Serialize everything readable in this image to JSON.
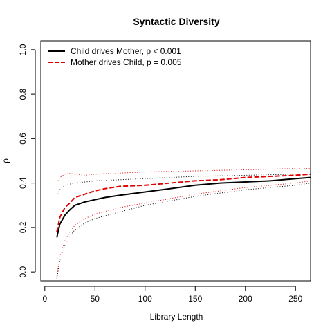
{
  "chart_data": {
    "type": "line",
    "title": "Syntactic Diversity",
    "xlabel": "Library Length",
    "ylabel": "ρ",
    "xlim": [
      -4,
      265
    ],
    "ylim": [
      -0.04,
      1.04
    ],
    "x_ticks": [
      0,
      50,
      100,
      150,
      200,
      250
    ],
    "y_ticks": [
      0.0,
      0.2,
      0.4,
      0.6,
      0.8,
      1.0
    ],
    "x_tick_labels": [
      "0",
      "50",
      "100",
      "150",
      "200",
      "250"
    ],
    "y_tick_labels": [
      "0.0",
      "0.2",
      "0.4",
      "0.6",
      "0.8",
      "1.0"
    ],
    "grid": false,
    "legend_position": "top-left",
    "series": [
      {
        "name": "Child drives Mother, p < 0.001",
        "color": "#000000",
        "style": "solid",
        "x": [
          12,
          15,
          20,
          25,
          30,
          40,
          50,
          60,
          75,
          100,
          125,
          150,
          175,
          200,
          225,
          250,
          265
        ],
        "y": [
          0.155,
          0.215,
          0.255,
          0.28,
          0.3,
          0.315,
          0.325,
          0.335,
          0.345,
          0.36,
          0.375,
          0.39,
          0.4,
          0.405,
          0.41,
          0.42,
          0.425
        ],
        "band_upper": {
          "x": [
            12,
            15,
            20,
            25,
            30,
            40,
            50,
            75,
            100,
            150,
            200,
            250,
            265
          ],
          "y": [
            0.34,
            0.37,
            0.39,
            0.395,
            0.4,
            0.405,
            0.41,
            0.415,
            0.42,
            0.43,
            0.435,
            0.44,
            0.44
          ]
        },
        "band_lower": {
          "x": [
            12,
            15,
            20,
            25,
            30,
            40,
            50,
            75,
            100,
            150,
            200,
            250,
            265
          ],
          "y": [
            -0.03,
            0.05,
            0.12,
            0.16,
            0.19,
            0.22,
            0.24,
            0.27,
            0.3,
            0.34,
            0.37,
            0.39,
            0.4
          ]
        }
      },
      {
        "name": "Mother drives Child, p = 0.005",
        "color": "#e00000",
        "style": "dashed",
        "x": [
          12,
          15,
          20,
          25,
          30,
          40,
          50,
          60,
          75,
          100,
          125,
          150,
          175,
          200,
          225,
          250,
          265
        ],
        "y": [
          0.18,
          0.245,
          0.29,
          0.31,
          0.335,
          0.35,
          0.365,
          0.375,
          0.385,
          0.39,
          0.4,
          0.41,
          0.415,
          0.425,
          0.43,
          0.435,
          0.44
        ],
        "band_upper": {
          "x": [
            12,
            15,
            20,
            25,
            30,
            40,
            50,
            75,
            100,
            150,
            200,
            250,
            265
          ],
          "y": [
            0.4,
            0.425,
            0.44,
            0.443,
            0.44,
            0.435,
            0.44,
            0.445,
            0.45,
            0.455,
            0.46,
            0.465,
            0.465
          ]
        },
        "band_lower": {
          "x": [
            12,
            15,
            20,
            25,
            30,
            40,
            50,
            75,
            100,
            150,
            200,
            250,
            265
          ],
          "y": [
            -0.02,
            0.07,
            0.14,
            0.18,
            0.21,
            0.24,
            0.26,
            0.29,
            0.31,
            0.35,
            0.38,
            0.4,
            0.41
          ]
        }
      }
    ]
  }
}
